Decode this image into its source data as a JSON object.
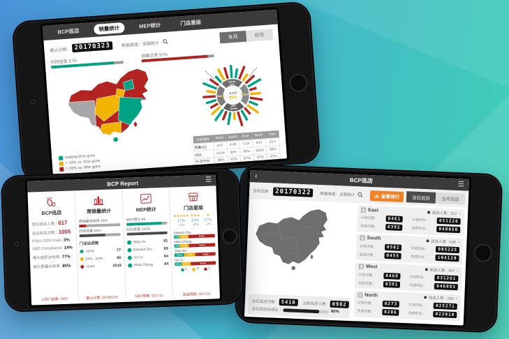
{
  "bg": {
    "blue": "#4a92d8",
    "teal": "#3fcfb4"
  },
  "phone_top": {
    "tabs": [
      {
        "label": "BCP巡店"
      },
      {
        "label": "销量统计"
      },
      {
        "label": "MEP统计"
      },
      {
        "label": "门店星级"
      }
    ],
    "date_label": "截止日期 :",
    "date_value": "20170323",
    "dimension_label": "数据维度：全国统计",
    "btn_month": "本月",
    "btn_trend": "趋势",
    "progress": [
      {
        "label": "时间进度 87%",
        "pct": 87,
        "color": "#00a383"
      },
      {
        "label": "销量达成 91%",
        "pct": 91,
        "color": "#b3231f"
      }
    ],
    "legend": [
      {
        "color": "#00a383",
        "label": "leading time gone"
      },
      {
        "color": "#f2b200",
        "label": "< 10% vs. time gone"
      },
      {
        "color": "#b3231f",
        "label": "> 10% vs. time gone"
      }
    ],
    "radial": {
      "center_label": "月达成",
      "center_value": "91%",
      "regions": [
        {
          "name": "North",
          "value": "93%",
          "fill": "#6e6e6e",
          "vcolor": "#eeeeee"
        },
        {
          "name": "East",
          "value": "88%",
          "fill": "#8a8a8a",
          "vcolor": "#f2b200"
        },
        {
          "name": "South",
          "value": "89%",
          "fill": "#5f5f5f",
          "vcolor": "#eeeeee"
        },
        {
          "name": "West",
          "value": "94%",
          "fill": "#7d7d7d",
          "vcolor": "#f2b200"
        }
      ],
      "bars": [
        {
          "c": "#00a383",
          "l": 24
        },
        {
          "c": "#00a383",
          "l": 18
        },
        {
          "c": "#b3231f",
          "l": 26
        },
        {
          "c": "#f2b200",
          "l": 16
        },
        {
          "c": "#b3231f",
          "l": 22
        },
        {
          "c": "#00a383",
          "l": 28
        },
        {
          "c": "#b3231f",
          "l": 14
        },
        {
          "c": "#f2b200",
          "l": 20
        },
        {
          "c": "#b3231f",
          "l": 24
        },
        {
          "c": "#00a383",
          "l": 18
        },
        {
          "c": "#f2b200",
          "l": 26
        },
        {
          "c": "#b3231f",
          "l": 16
        },
        {
          "c": "#00a383",
          "l": 22
        },
        {
          "c": "#b3231f",
          "l": 28
        },
        {
          "c": "#f2b200",
          "l": 14
        },
        {
          "c": "#00a383",
          "l": 24
        },
        {
          "c": "#b3231f",
          "l": 18
        },
        {
          "c": "#00a383",
          "l": 26
        },
        {
          "c": "#f2b200",
          "l": 22
        },
        {
          "c": "#b3231f",
          "l": 16
        },
        {
          "c": "#00a383",
          "l": 20
        },
        {
          "c": "#b3231f",
          "l": 24
        },
        {
          "c": "#f2b200",
          "l": 18
        },
        {
          "c": "#00a383",
          "l": 28
        },
        {
          "c": "#b3231f",
          "l": 20
        },
        {
          "c": "#00a383",
          "l": 16
        },
        {
          "c": "#f2b200",
          "l": 24
        },
        {
          "c": "#b3231f",
          "l": 22
        }
      ]
    },
    "table": {
      "header": [
        "分区指标",
        "West",
        "South",
        "East",
        "North",
        "Total"
      ],
      "rows": [
        [
          "销量(亿)",
          "3.07",
          "4.48",
          "3.24",
          "8.67",
          "19.5"
        ],
        [
          "同比",
          "101%",
          "99%",
          "96%",
          "102%",
          "99%"
        ],
        [
          "% Of P.M",
          "98%",
          "97%",
          "97%",
          "97%",
          "97%"
        ],
        [
          "P.BY MR",
          "98%",
          "99%",
          "101%",
          "103%",
          "101%"
        ]
      ]
    }
  },
  "phone_left": {
    "title": "BCP Report",
    "cards": [
      {
        "title": "BCP巡店",
        "kpis": [
          {
            "label": "当日巡店人数 :",
            "value": "617"
          },
          {
            "label": "当日巡店次数 :",
            "value": "1005"
          }
        ],
        "stats": [
          {
            "label": "PSKU DOS Rate:",
            "value": "3%"
          },
          {
            "label": "SBD Compliance:",
            "value": "14%"
          },
          {
            "label": "堆头面积达标率:",
            "value": "77%"
          },
          {
            "label": "堆头质量达标率:",
            "value": "85%"
          }
        ],
        "footer": "上传门店数: 4497"
      },
      {
        "title": "周销量统计",
        "bars": [
          {
            "label": "周销量完成率 18%",
            "pct": 18,
            "color": "#b3231f"
          },
          {
            "label": "时间进度 64%",
            "pct": 64,
            "color": "#4a4a4a"
          }
        ],
        "list_title": "门店达成数",
        "list": [
          {
            "dot": "#00a383",
            "label": ">64%",
            "value": "77"
          },
          {
            "dot": "#f2b200",
            "label": "54% - 64%",
            "value": "90"
          },
          {
            "dot": "#b3231f",
            "label": "<54%",
            "value": "4319"
          }
        ],
        "footer": "截止日期: 20160218"
      },
      {
        "title": "MEP统计",
        "bars": [
          {
            "label": "MEP得分 86",
            "pct": 86,
            "color": "#00a383"
          },
          {
            "label": "时间进度 100%",
            "pct": 100,
            "color": "#4a4a4a"
          }
        ],
        "list": [
          {
            "name": "Step Hu",
            "value": "91"
          },
          {
            "name": "Edward Zhu",
            "value": "89"
          },
          {
            "name": "Ivy Lv",
            "value": "84"
          },
          {
            "name": "Hilda Zhang",
            "value": "84"
          }
        ],
        "footer": "MEP周期: 201712"
      },
      {
        "title": "门店星级",
        "star_cols": [
          {
            "stars": "★★★★★",
            "pct": "17%",
            "delta": "<2%"
          },
          {
            "stars": "★★★",
            "pct": "26%",
            "delta": "+0%"
          },
          {
            "stars": "★",
            "pct": "57%",
            "delta": "-2%"
          }
        ],
        "stacked": [
          {
            "name": "Edward Zhu",
            "segs": [
              14,
              22,
              64
            ]
          },
          {
            "name": "Hilda Zhang",
            "segs": [
              14,
              22,
              64
            ]
          },
          {
            "name": "Step Wu",
            "segs": [
              24,
              27,
              49
            ]
          },
          {
            "name": "Ivy Lv",
            "segs": [
              16,
              22,
              62
            ]
          }
        ],
        "legend": [
          {
            "color": "#00a383",
            "label": "5"
          },
          {
            "color": "#f2b200",
            "label": "3"
          },
          {
            "color": "#b3231f",
            "label": "1"
          }
        ],
        "footer": "星级周期: 201710"
      }
    ]
  },
  "phone_right": {
    "title": "BCP巡店",
    "back": "‹",
    "date_label": "当前日期 :",
    "date_value": "20170322",
    "dimension_label": "数据维度：全国统计",
    "rank_button": "查看排行",
    "tabs": [
      {
        "label": "当日巡店"
      },
      {
        "label": "当月巡店"
      }
    ],
    "row_labels": {
      "plan_count": "计划次数 :",
      "plan_time": "计划时长 :",
      "done_count": "完成次数 :",
      "done_time": "完成时长 :",
      "people": "巡店人数 :"
    },
    "regions": [
      {
        "name": "East",
        "people": "312",
        "plan_count": "0461",
        "plan_time": "051226",
        "done_count": "0392",
        "done_time": "048050"
      },
      {
        "name": "South",
        "people": "438",
        "plan_count": "0502",
        "plan_time": "085225",
        "done_count": "0455",
        "done_time": "104120"
      },
      {
        "name": "West",
        "people": "347",
        "plan_count": "0468",
        "plan_time": "031261",
        "done_count": "0391",
        "done_time": "046083"
      },
      {
        "name": "North",
        "people": "258",
        "plan_count": "0273",
        "plan_time": "025271",
        "done_count": "0206",
        "done_time": "022010"
      }
    ],
    "footer": {
      "count_label": "当日巡店次数 :",
      "count": "5410",
      "people_label": "当前巡店人数 :",
      "people": "0982",
      "rate_label": "当日巡店达成比 :",
      "rate_pct": 80,
      "rate": "80%"
    }
  }
}
